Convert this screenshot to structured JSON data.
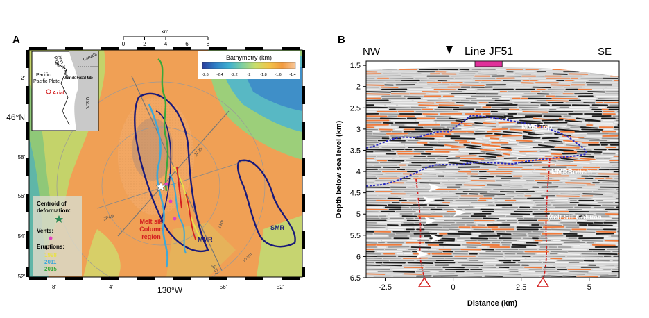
{
  "panel_a": {
    "letter": "A",
    "scale_bar": {
      "unit": "km",
      "ticks": [
        "0",
        "2",
        "4",
        "6",
        "8"
      ]
    },
    "colorbar": {
      "title": "Bathymetry (km)",
      "ticks": [
        "-2.6",
        "-2.4",
        "-2.2",
        "-2",
        "-1.8",
        "-1.6",
        "-1.4"
      ],
      "colors": [
        "#2a3f9e",
        "#2f7fc6",
        "#3fb0d0",
        "#7fcfa0",
        "#c9de6a",
        "#f1c54a",
        "#f29a3e",
        "#f7c79a"
      ]
    },
    "inset": {
      "plates": [
        "Pacific Plate",
        "Juan de Fuca Plate",
        "U.S.A."
      ],
      "ridge": [
        "Juan de Fuca",
        "Ridge"
      ],
      "canada": "Canada",
      "site": "Axial"
    },
    "lat_labels": [
      "2'",
      "46°N",
      "58'",
      "56'",
      "54'",
      "52'"
    ],
    "lon_labels": [
      "8'",
      "4'",
      "130°W",
      "56'",
      "52'"
    ],
    "profile_labels": [
      "JF35",
      "JF51",
      "JF49"
    ],
    "ring_labels": [
      "5 km",
      "10 km"
    ],
    "region_labels": [
      "MMR",
      "SMR"
    ],
    "melt_label": [
      "Melt sill",
      "Column",
      "region"
    ],
    "legend": {
      "centroid": [
        "Centroid of",
        "deformation:"
      ],
      "vents": "Vents:",
      "eruptions": "Eruptions:",
      "years": [
        {
          "year": "1998",
          "color": "#e8e04a"
        },
        {
          "year": "2011",
          "color": "#3fa8d8"
        },
        {
          "year": "2015",
          "color": "#3aa83a"
        }
      ],
      "star_color": "#2e8b57",
      "vent_color": "#e040c0"
    }
  },
  "panel_b": {
    "letter": "B",
    "title": "Line JF51",
    "left_dir": "NW",
    "right_dir": "SE",
    "ylabel": "Depth below sea level (km)",
    "xlabel": "Distance (km)",
    "y_ticks": [
      {
        "v": 1.5,
        "t": "1.5"
      },
      {
        "v": 2,
        "t": "2"
      },
      {
        "v": 2.5,
        "t": "2.5"
      },
      {
        "v": 3,
        "t": "3"
      },
      {
        "v": 3.5,
        "t": "3.5"
      },
      {
        "v": 4,
        "t": "4"
      },
      {
        "v": 4.5,
        "t": "4.5"
      },
      {
        "v": 5,
        "t": "5"
      },
      {
        "v": 5.5,
        "t": "5.5"
      },
      {
        "v": 6,
        "t": "6"
      },
      {
        "v": 6.5,
        "t": "6.5"
      }
    ],
    "x_ticks": [
      {
        "v": -2.5,
        "t": "-2.5"
      },
      {
        "v": 0,
        "t": "0"
      },
      {
        "v": 2.5,
        "t": "2.5"
      },
      {
        "v": 5,
        "t": "5"
      }
    ],
    "labels": {
      "top": "MMR Top",
      "bottom": "MMRBottom",
      "column": "Melt Sill Column"
    },
    "caldera_bar_km": [
      0.8,
      1.8
    ]
  }
}
